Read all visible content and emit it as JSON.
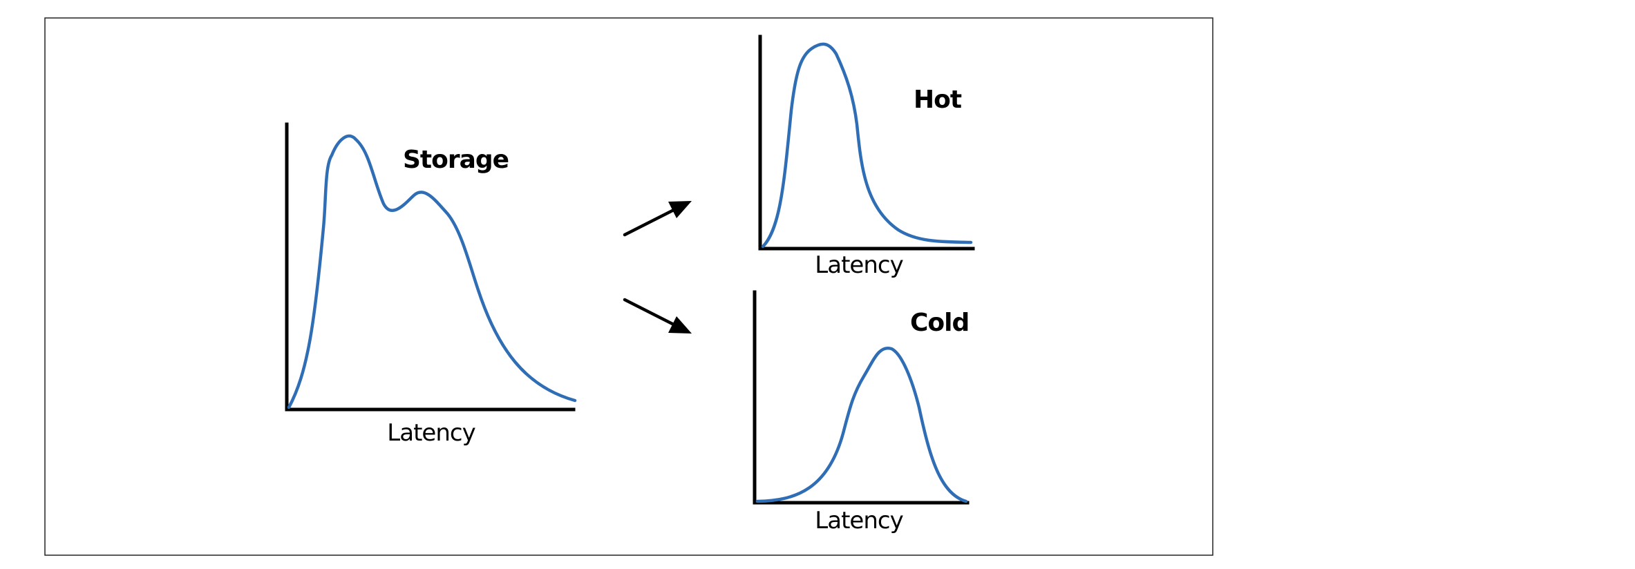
{
  "colors": {
    "curve": "#2f6eb5",
    "axis": "#000000",
    "background": "#ffffff"
  },
  "panels": {
    "storage": {
      "title": "Storage",
      "xlabel": "Latency"
    },
    "hot": {
      "title": "Hot",
      "xlabel": "Latency"
    },
    "cold": {
      "title": "Cold",
      "xlabel": "Latency"
    }
  },
  "arrows": [
    "right-up-arrow",
    "right-down-arrow"
  ]
}
